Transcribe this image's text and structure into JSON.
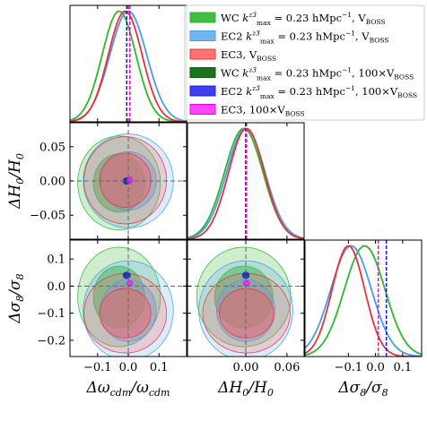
{
  "chart_data": {
    "type": "corner",
    "parameters": [
      {
        "key": "omega_cdm",
        "label": "Δω_cdm/ω_cdm",
        "ticks": [
          "−0.1",
          "0.0",
          "0.1"
        ],
        "tick_values": [
          -0.1,
          0.0,
          0.1
        ],
        "range": [
          -0.19,
          0.19
        ],
        "fiducial": 0.0
      },
      {
        "key": "H0",
        "label": "ΔH_0/H_0",
        "ticks": [
          "−0.05",
          "0.00",
          "0.05"
        ],
        "tick_values": [
          -0.05,
          0.0,
          0.05
        ],
        "range": [
          -0.085,
          0.085
        ],
        "fiducial": 0.0,
        "xticks": [
          "0.00",
          "0.06"
        ],
        "xtick_values": [
          0.0,
          0.06
        ]
      },
      {
        "key": "sigma8",
        "label": "Δσ_8/σ_8",
        "ticks": [
          "0.1",
          "0.0",
          "−0.1",
          "−0.2"
        ],
        "tick_values": [
          0.1,
          0.0,
          -0.1,
          -0.2
        ],
        "range": [
          -0.26,
          0.17
        ],
        "fiducial": 0.0,
        "xticks": [
          "−0.1",
          "0.0",
          "0.1"
        ],
        "xtick_values": [
          -0.1,
          0.0,
          0.1
        ]
      }
    ],
    "legend_position": "top-right",
    "series": [
      {
        "name": "WC  k_max^{z3} = 0.23 hMpc⁻¹, V_BOSS",
        "color": "#2db82d",
        "fill": "#22b022",
        "mean": {
          "omega_cdm": -0.03,
          "H0": -0.003,
          "sigma8": -0.04
        },
        "sigma": {
          "omega_cdm": 0.055,
          "H0": 0.028,
          "sigma8": 0.075
        }
      },
      {
        "name": "EC2  k_max^{z3} = 0.23 hMpc⁻¹, V_BOSS",
        "color": "#4a9be8",
        "fill": "#5aa8f0",
        "mean": {
          "omega_cdm": 0.0,
          "H0": 0.0,
          "sigma8": -0.09
        },
        "sigma": {
          "omega_cdm": 0.06,
          "H0": 0.028,
          "sigma8": 0.075
        }
      },
      {
        "name": "EC3, V_BOSS",
        "color": "#e8313b",
        "fill": "#ff5a5a",
        "mean": {
          "omega_cdm": -0.01,
          "H0": 0.001,
          "sigma8": -0.1
        },
        "sigma": {
          "omega_cdm": 0.055,
          "H0": 0.026,
          "sigma8": 0.06
        }
      },
      {
        "name": "WC  k_max^{z3} = 0.23 hMpc⁻¹, 100×V_BOSS",
        "color": "#006400",
        "fill": "#006400",
        "mean": {
          "omega_cdm": -0.005,
          "H0": 0.0,
          "sigma8": 0.04
        },
        "sigma": {
          "omega_cdm": 0.004,
          "H0": 0.002,
          "sigma8": 0.004
        }
      },
      {
        "name": "EC2  k_max^{z3} = 0.23 hMpc⁻¹, 100×V_BOSS",
        "color": "#1f1fd8",
        "fill": "#2a2ae8",
        "mean": {
          "omega_cdm": -0.005,
          "H0": 0.0,
          "sigma8": 0.04
        },
        "sigma": {
          "omega_cdm": 0.005,
          "H0": 0.002,
          "sigma8": 0.005
        }
      },
      {
        "name": "EC3, 100×V_BOSS",
        "color": "#ee00ee",
        "fill": "#ff33ff",
        "mean": {
          "omega_cdm": 0.005,
          "H0": 0.001,
          "sigma8": 0.01
        },
        "sigma": {
          "omega_cdm": 0.004,
          "H0": 0.002,
          "sigma8": 0.004
        }
      }
    ],
    "legend_entries": [
      {
        "prefix": "WC ",
        "kmax": "k",
        "kmax_sub": "max",
        "kmax_sup": "z3",
        "value": " = 0.23 ",
        "unit": "hMpc",
        "unit_sup": "−1",
        "vol": ", V",
        "vol_sub": "BOSS",
        "vol_pre": ""
      },
      {
        "prefix": "EC2 ",
        "kmax": "k",
        "kmax_sub": "max",
        "kmax_sup": "z3",
        "value": " = 0.23 ",
        "unit": "hMpc",
        "unit_sup": "−1",
        "vol": ", V",
        "vol_sub": "BOSS",
        "vol_pre": ""
      },
      {
        "prefix": "EC3, ",
        "kmax": "",
        "kmax_sub": "",
        "kmax_sup": "",
        "value": "",
        "unit": "",
        "unit_sup": "",
        "vol": "V",
        "vol_sub": "BOSS",
        "vol_pre": ""
      },
      {
        "prefix": "WC ",
        "kmax": "k",
        "kmax_sub": "max",
        "kmax_sup": "z3",
        "value": " = 0.23 ",
        "unit": "hMpc",
        "unit_sup": "−1",
        "vol": ", 100×V",
        "vol_sub": "BOSS",
        "vol_pre": ""
      },
      {
        "prefix": "EC2 ",
        "kmax": "k",
        "kmax_sub": "max",
        "kmax_sup": "z3",
        "value": " = 0.23 ",
        "unit": "hMpc",
        "unit_sup": "−1",
        "vol": ", 100×V",
        "vol_sub": "BOSS",
        "vol_pre": ""
      },
      {
        "prefix": "EC3, ",
        "kmax": "",
        "kmax_sub": "",
        "kmax_sup": "",
        "value": "",
        "unit": "",
        "unit_sup": "",
        "vol": "100×V",
        "vol_sub": "BOSS",
        "vol_pre": ""
      }
    ],
    "axis_labels": {
      "x": [
        {
          "base": "Δω",
          "sub": "cdm",
          "mid": "/ω",
          "sub2": "cdm"
        },
        {
          "base": "ΔH",
          "sub": "0",
          "mid": "/H",
          "sub2": "0"
        },
        {
          "base": "Δσ",
          "sub": "8",
          "mid": "/σ",
          "sub2": "8"
        }
      ],
      "y": [
        {
          "base": "ΔH",
          "sub": "0",
          "mid": "/H",
          "sub2": "0"
        },
        {
          "base": "Δσ",
          "sub": "8",
          "mid": "/σ",
          "sub2": "8"
        }
      ]
    },
    "grid": false,
    "fiducial_lines": "dashed grey at 0"
  }
}
